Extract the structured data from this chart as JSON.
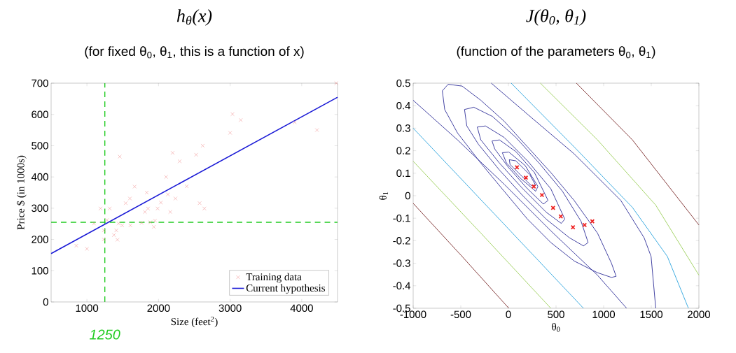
{
  "chart_data": [
    {
      "type": "scatter",
      "title": "h$_{θ}$(x)",
      "subtitle": "(for fixed θ$_{0}$, θ$_{1}$, this is a function of x)",
      "xlabel": "Size (feet$^{2}$)",
      "ylabel": "Price $ (in 1000s)",
      "xlim": [
        500,
        4500
      ],
      "ylim": [
        0,
        700
      ],
      "xticks": [
        1000,
        2000,
        3000,
        4000
      ],
      "yticks": [
        0,
        100,
        200,
        300,
        400,
        500,
        600,
        700
      ],
      "legend": "bottom right",
      "series": [
        {
          "name": "Training data",
          "type": "scatter",
          "marker": "cross",
          "color": "#f29a9a",
          "x": [
            852,
            1000,
            1190,
            1098,
            1236,
            1236,
            1279,
            1318,
            1377,
            1410,
            1426,
            1443,
            1459,
            1492,
            1541,
            1600,
            1607,
            1666,
            1764,
            1810,
            1836,
            1853,
            1885,
            1934,
            1951,
            1987,
            2033,
            2105,
            2131,
            2164,
            2197,
            2236,
            2295,
            2394,
            2525,
            2574,
            2617,
            2640,
            3000,
            3033,
            3148,
            3902,
            4213,
            4482
          ],
          "values": [
            180,
            170,
            299,
            251,
            229,
            200,
            262,
            299,
            214,
            229,
            199,
            251,
            465,
            245,
            316,
            331,
            245,
            369,
            253,
            288,
            350,
            299,
            255,
            240,
            260,
            299,
            318,
            400,
            344,
            288,
            477,
            331,
            450,
            370,
            471,
            316,
            500,
            299,
            541,
            601,
            582,
            575,
            550,
            700
          ]
        },
        {
          "name": "Current hypothesis",
          "type": "line",
          "color": "#1a1ad6",
          "x": [
            500,
            4500
          ],
          "values": [
            155,
            655
          ]
        }
      ],
      "ref_lines": [
        {
          "axis": "x",
          "value": 1250,
          "color": "#22cc22",
          "line_style": "dashed"
        },
        {
          "axis": "y",
          "value": 255,
          "color": "#22cc22",
          "line_style": "dashed"
        }
      ],
      "annotations": [
        {
          "text": "1250",
          "x": 1250,
          "y": 0
        }
      ]
    },
    {
      "type": "line",
      "title": "J(θ$_{0}$, θ$_{1}$)",
      "subtitle": "(function of the parameters θ$_{0}$, θ$_{1}$)",
      "xlabel": "θ$_{0}$",
      "ylabel": "θ$_{1}$",
      "xlim": [
        -1000,
        2000
      ],
      "ylim": [
        -0.5,
        0.5
      ],
      "xticks": [
        -1000,
        -500,
        0,
        500,
        1000,
        1500,
        2000
      ],
      "yticks": [
        -0.5,
        -0.4,
        -0.3,
        -0.2,
        -0.1,
        0,
        0.1,
        0.2,
        0.3,
        0.4,
        0.5
      ],
      "series": [
        {
          "color": "#7a2a2a",
          "x": [
            -1000,
            -486,
            4
          ],
          "values": [
            -0.034,
            -0.27,
            -0.5
          ]
        },
        {
          "color": "#9ccf5a",
          "x": [
            -1000,
            -290,
            445
          ],
          "values": [
            0.153,
            -0.166,
            -0.5
          ]
        },
        {
          "color": "#2aa3dd",
          "x": [
            -1000,
            -143,
            788
          ],
          "values": [
            0.3,
            -0.083,
            -0.5
          ]
        },
        {
          "color": "#2e2e98",
          "x": [
            -1000,
            -535,
            -45,
            445,
            935,
            1241
          ],
          "values": [
            0.424,
            0.248,
            0.051,
            -0.156,
            -0.353,
            -0.5
          ]
        },
        {
          "color": "#2e2e98",
          "x": [
            -180,
            200,
            690,
            1180,
            1425,
            1498,
            1547
          ],
          "values": [
            0.5,
            0.362,
            0.186,
            -0.021,
            -0.187,
            -0.27,
            -0.5
          ]
        },
        {
          "color": "#2aa3dd",
          "x": [
            29,
            690,
            1302,
            1669,
            1890
          ],
          "values": [
            0.5,
            0.217,
            -0.052,
            -0.27,
            -0.5
          ]
        },
        {
          "color": "#9ccf5a",
          "x": [
            335,
            935,
            1547,
            2000
          ],
          "values": [
            0.5,
            0.248,
            -0.042,
            -0.353
          ]
        },
        {
          "color": "#7a2a2a",
          "x": [
            714,
            1302,
            2000
          ],
          "values": [
            0.5,
            0.248,
            -0.13
          ]
        },
        {
          "color": "#2e2e98",
          "x": [
            -694,
            -633,
            -486,
            -290,
            -45,
            200,
            445,
            690,
            935,
            1082,
            1131
          ],
          "values": [
            0.466,
            0.495,
            0.487,
            0.424,
            0.331,
            0.217,
            0.103,
            -0.021,
            -0.166,
            -0.3,
            -0.358
          ]
        },
        {
          "color": "#2e2e98",
          "x": [
            -694,
            -669,
            -535,
            -290,
            -45,
            200,
            445,
            690,
            935,
            1082,
            1131
          ],
          "values": [
            0.466,
            0.383,
            0.279,
            0.145,
            0.02,
            -0.104,
            -0.208,
            -0.29,
            -0.342,
            -0.363,
            -0.358
          ]
        },
        {
          "color": "#2e2e98",
          "x": [
            -461,
            -363,
            -167,
            78,
            322,
            567,
            763,
            837
          ],
          "values": [
            0.383,
            0.393,
            0.352,
            0.259,
            0.145,
            0.02,
            -0.114,
            -0.208
          ]
        },
        {
          "color": "#2e2e98",
          "x": [
            -461,
            -437,
            -314,
            -94,
            151,
            396,
            641,
            788,
            837
          ],
          "values": [
            0.383,
            0.31,
            0.228,
            0.114,
            0.0,
            -0.104,
            -0.187,
            -0.223,
            -0.208
          ]
        },
        {
          "color": "#2e2e98",
          "x": [
            -327,
            -241,
            -45,
            200,
            445,
            592
          ],
          "values": [
            0.305,
            0.31,
            0.259,
            0.155,
            0.031,
            -0.104
          ]
        },
        {
          "color": "#2e2e98",
          "x": [
            -327,
            -290,
            -94,
            151,
            396,
            555,
            592
          ],
          "values": [
            0.305,
            0.248,
            0.145,
            0.031,
            -0.073,
            -0.123,
            -0.104
          ]
        },
        {
          "color": "#2e2e98",
          "x": [
            -172,
            -94,
            78,
            273,
            416
          ],
          "values": [
            0.243,
            0.248,
            0.196,
            0.103,
            -0.021
          ]
        },
        {
          "color": "#2e2e98",
          "x": [
            -172,
            -143,
            4,
            200,
            367,
            416
          ],
          "values": [
            0.243,
            0.207,
            0.124,
            0.031,
            -0.037,
            -0.021
          ]
        },
        {
          "color": "#2e2e98",
          "x": [
            -64,
            4,
            176,
            310
          ],
          "values": [
            0.191,
            0.194,
            0.134,
            0.041
          ]
        },
        {
          "color": "#2e2e98",
          "x": [
            -64,
            -20,
            127,
            286,
            310
          ],
          "values": [
            0.191,
            0.145,
            0.077,
            0.02,
            0.041
          ]
        },
        {
          "color": "#2e2e98",
          "x": [
            9,
            78,
            225,
            286
          ],
          "values": [
            0.16,
            0.155,
            0.093,
            0.046
          ]
        },
        {
          "color": "#2e2e98",
          "x": [
            9,
            17,
            102,
            237,
            286
          ],
          "values": [
            0.16,
            0.139,
            0.103,
            0.046,
            0.046
          ]
        },
        {
          "type": "scatter",
          "marker": "cross",
          "color": "#ee2222",
          "x": [
            90,
            183,
            266,
            352,
            469,
            550,
            678,
            800,
            881
          ],
          "values": [
            0.126,
            0.08,
            0.041,
            0.003,
            -0.054,
            -0.092,
            -0.14,
            -0.13,
            -0.114
          ]
        }
      ]
    }
  ]
}
